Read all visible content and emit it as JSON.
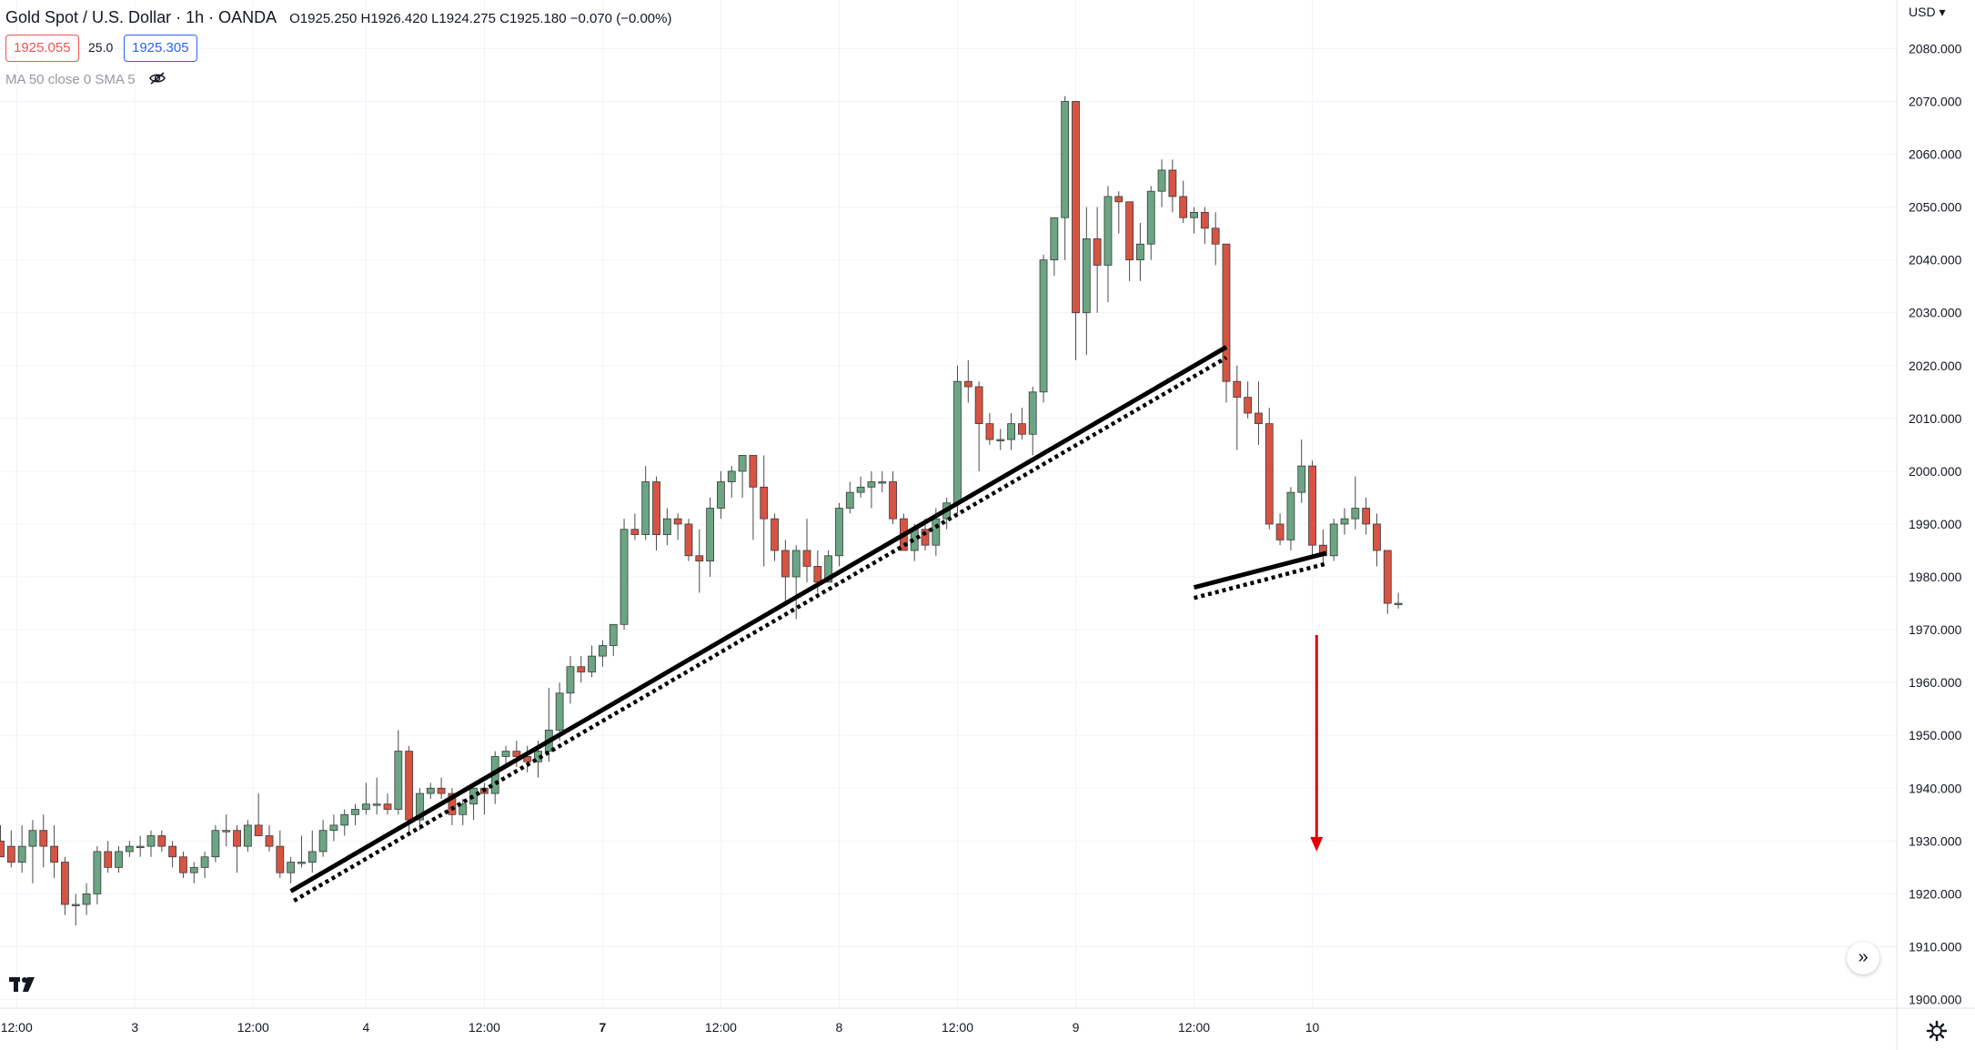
{
  "header": {
    "title": "Gold Spot / U.S. Dollar · 1h · OANDA",
    "ohlc": "O1925.250 H1926.420 L1924.275 C1925.180 −0.070 (−0.00%)",
    "sell_price": "1925.055",
    "spread": "25.0",
    "buy_price": "1925.305",
    "indicator_legend": "MA 50 close 0 SMA 5"
  },
  "currency": "USD",
  "colors": {
    "up": "#6ba583",
    "down": "#d75442",
    "grid": "#f0f3fa",
    "trendline": "#000000",
    "target_arrow": "#e00000"
  },
  "icons": [
    "eye-hidden-icon",
    "tradingview-logo-icon",
    "scroll-right-icon",
    "settings-gear-icon"
  ],
  "chart_data": {
    "type": "candlestick",
    "title": "Gold Spot / U.S. Dollar · 1h · OANDA",
    "ylim": [
      1900,
      2080
    ],
    "y_ticks": [
      "2080.000",
      "2070.000",
      "2060.000",
      "2050.000",
      "2040.000",
      "2030.000",
      "2020.000",
      "2010.000",
      "2000.000",
      "1990.000",
      "1980.000",
      "1970.000",
      "1960.000",
      "1950.000",
      "1940.000",
      "1930.000",
      "1920.000",
      "1910.000",
      "1900.000"
    ],
    "x_ticks": [
      {
        "i": 1.5,
        "label": "12:00",
        "bold": false
      },
      {
        "i": 12.5,
        "label": "3",
        "bold": false
      },
      {
        "i": 23.5,
        "label": "12:00",
        "bold": false
      },
      {
        "i": 34,
        "label": "4",
        "bold": false
      },
      {
        "i": 45,
        "label": "12:00",
        "bold": false
      },
      {
        "i": 56,
        "label": "7",
        "bold": true
      },
      {
        "i": 67,
        "label": "12:00",
        "bold": false
      },
      {
        "i": 78,
        "label": "8",
        "bold": false
      },
      {
        "i": 89,
        "label": "12:00",
        "bold": false
      },
      {
        "i": 100,
        "label": "9",
        "bold": false
      },
      {
        "i": 111,
        "label": "12:00",
        "bold": false
      },
      {
        "i": 122,
        "label": "10",
        "bold": false
      }
    ],
    "candles": [
      [
        1930,
        1933,
        1927,
        1927
      ],
      [
        1929,
        1932,
        1925,
        1926
      ],
      [
        1926,
        1933,
        1924,
        1929
      ],
      [
        1929,
        1934,
        1922,
        1932
      ],
      [
        1932,
        1935,
        1925,
        1929
      ],
      [
        1929,
        1933,
        1923,
        1926
      ],
      [
        1926,
        1927,
        1916,
        1918
      ],
      [
        1918,
        1920,
        1914,
        1918
      ],
      [
        1918,
        1922,
        1916,
        1920
      ],
      [
        1920,
        1929,
        1918,
        1928
      ],
      [
        1928,
        1930,
        1924,
        1925
      ],
      [
        1925,
        1929,
        1924,
        1928
      ],
      [
        1928,
        1930,
        1927,
        1929
      ],
      [
        1929,
        1931,
        1927,
        1929
      ],
      [
        1929,
        1932,
        1927,
        1931
      ],
      [
        1931,
        1932,
        1928,
        1929
      ],
      [
        1929,
        1930,
        1925,
        1927
      ],
      [
        1927,
        1928,
        1923,
        1924
      ],
      [
        1924,
        1926,
        1922,
        1925
      ],
      [
        1925,
        1928,
        1923,
        1927
      ],
      [
        1927,
        1933,
        1926,
        1932
      ],
      [
        1932,
        1935,
        1929,
        1932
      ],
      [
        1932,
        1933,
        1924,
        1929
      ],
      [
        1929,
        1934,
        1928,
        1933
      ],
      [
        1933,
        1939,
        1932,
        1931
      ],
      [
        1931,
        1933,
        1928,
        1929
      ],
      [
        1929,
        1932,
        1923,
        1924
      ],
      [
        1924,
        1927,
        1922,
        1926
      ],
      [
        1926,
        1931,
        1925,
        1926
      ],
      [
        1926,
        1932,
        1924,
        1928
      ],
      [
        1928,
        1934,
        1927,
        1932
      ],
      [
        1932,
        1935,
        1930,
        1933
      ],
      [
        1933,
        1936,
        1931,
        1935
      ],
      [
        1935,
        1937,
        1933,
        1936
      ],
      [
        1936,
        1941,
        1935,
        1937
      ],
      [
        1937,
        1942,
        1935,
        1937
      ],
      [
        1937,
        1939,
        1935,
        1936
      ],
      [
        1936,
        1951,
        1935,
        1947
      ],
      [
        1947,
        1948,
        1931,
        1934
      ],
      [
        1934,
        1940,
        1932,
        1939
      ],
      [
        1939,
        1941,
        1938,
        1940
      ],
      [
        1940,
        1942,
        1938,
        1939
      ],
      [
        1939,
        1940,
        1933,
        1935
      ],
      [
        1935,
        1938,
        1933,
        1937
      ],
      [
        1937,
        1940,
        1934,
        1940
      ],
      [
        1940,
        1941,
        1935,
        1939
      ],
      [
        1939,
        1947,
        1937,
        1946
      ],
      [
        1946,
        1948,
        1944,
        1947
      ],
      [
        1947,
        1949,
        1944,
        1946
      ],
      [
        1946,
        1948,
        1943,
        1945
      ],
      [
        1945,
        1949,
        1942,
        1947
      ],
      [
        1947,
        1959,
        1945,
        1951
      ],
      [
        1951,
        1960,
        1949,
        1958
      ],
      [
        1958,
        1965,
        1956,
        1963
      ],
      [
        1963,
        1965,
        1960,
        1962
      ],
      [
        1962,
        1967,
        1961,
        1965
      ],
      [
        1965,
        1968,
        1963,
        1967
      ],
      [
        1967,
        1970,
        1965,
        1971
      ],
      [
        1971,
        1991,
        1970,
        1989
      ],
      [
        1989,
        1992,
        1987,
        1988
      ],
      [
        1988,
        2001,
        1987,
        1998
      ],
      [
        1998,
        1999,
        1985,
        1988
      ],
      [
        1988,
        1993,
        1986,
        1991
      ],
      [
        1991,
        1992,
        1987,
        1990
      ],
      [
        1990,
        1991,
        1983,
        1984
      ],
      [
        1984,
        1989,
        1977,
        1983
      ],
      [
        1983,
        1995,
        1980,
        1993
      ],
      [
        1993,
        2000,
        1991,
        1998
      ],
      [
        1998,
        2001,
        1995,
        2000
      ],
      [
        2000,
        2003,
        1995,
        2003
      ],
      [
        2003,
        2003,
        1987,
        1997
      ],
      [
        1997,
        2003,
        1982,
        1991
      ],
      [
        1991,
        1992,
        1983,
        1985
      ],
      [
        1985,
        1987,
        1975,
        1980
      ],
      [
        1980,
        1986,
        1972,
        1985
      ],
      [
        1985,
        1991,
        1979,
        1982
      ],
      [
        1982,
        1985,
        1977,
        1979
      ],
      [
        1979,
        1985,
        1979,
        1984
      ],
      [
        1984,
        1994,
        1982,
        1993
      ],
      [
        1993,
        1998,
        1992,
        1996
      ],
      [
        1996,
        1999,
        1995,
        1997
      ],
      [
        1997,
        2000,
        1993,
        1998
      ],
      [
        1998,
        2000,
        1996,
        1998
      ],
      [
        1998,
        2000,
        1990,
        1991
      ],
      [
        1991,
        1992,
        1985,
        1985
      ],
      [
        1985,
        1990,
        1983,
        1989
      ],
      [
        1989,
        1991,
        1985,
        1986
      ],
      [
        1986,
        1993,
        1984,
        1991
      ],
      [
        1991,
        1995,
        1989,
        1994
      ],
      [
        1994,
        2020,
        1992,
        2017
      ],
      [
        2017,
        2021,
        2013,
        2016
      ],
      [
        2016,
        2017,
        2000,
        2009
      ],
      [
        2009,
        2011,
        2005,
        2006
      ],
      [
        2006,
        2008,
        2004,
        2006
      ],
      [
        2006,
        2011,
        2004,
        2009
      ],
      [
        2009,
        2012,
        2006,
        2007
      ],
      [
        2007,
        2016,
        2003,
        2015
      ],
      [
        2015,
        2041,
        2013,
        2040
      ],
      [
        2040,
        2048,
        2037,
        2048
      ],
      [
        2048,
        2071,
        2040,
        2070
      ],
      [
        2070,
        2070,
        2021,
        2030
      ],
      [
        2030,
        2050,
        2022,
        2044
      ],
      [
        2044,
        2050,
        2030,
        2039
      ],
      [
        2039,
        2054,
        2032,
        2052
      ],
      [
        2052,
        2053,
        2045,
        2051
      ],
      [
        2051,
        2051,
        2036,
        2040
      ],
      [
        2040,
        2047,
        2036,
        2043
      ],
      [
        2043,
        2054,
        2040,
        2053
      ],
      [
        2053,
        2059,
        2050,
        2057
      ],
      [
        2057,
        2059,
        2049,
        2052
      ],
      [
        2052,
        2055,
        2047,
        2048
      ],
      [
        2048,
        2050,
        2045,
        2049
      ],
      [
        2049,
        2050,
        2043,
        2046
      ],
      [
        2046,
        2049,
        2039,
        2043
      ],
      [
        2043,
        2043,
        2013,
        2017
      ],
      [
        2017,
        2020,
        2004,
        2014
      ],
      [
        2014,
        2017,
        2010,
        2011
      ],
      [
        2011,
        2017,
        2005,
        2009
      ],
      [
        2009,
        2012,
        1989,
        1990
      ],
      [
        1990,
        1992,
        1986,
        1987
      ],
      [
        1987,
        1997,
        1985,
        1996
      ],
      [
        1996,
        2006,
        1994,
        2001
      ],
      [
        2001,
        2002,
        1984,
        1986
      ],
      [
        1986,
        1989,
        1982,
        1984
      ],
      [
        1984,
        1991,
        1983,
        1990
      ],
      [
        1990,
        1993,
        1988,
        1991
      ],
      [
        1991,
        1999,
        1989,
        1993
      ],
      [
        1993,
        1995,
        1988,
        1990
      ],
      [
        1990,
        1992,
        1982,
        1985
      ],
      [
        1985,
        1985,
        1973,
        1975
      ],
      [
        1975,
        1977,
        1974,
        1975
      ]
    ],
    "trendlines": [
      {
        "style": "solid",
        "from": [
          27,
          1920.5
        ],
        "to": [
          114,
          2023.5
        ]
      },
      {
        "style": "dotted",
        "from": [
          27.3,
          1918.7
        ],
        "to": [
          114,
          2021.5
        ]
      },
      {
        "style": "solid",
        "from": [
          111,
          1978
        ],
        "to": [
          123.3,
          1984.5
        ]
      },
      {
        "style": "dotted",
        "from": [
          111,
          1976
        ],
        "to": [
          123.3,
          1982.5
        ]
      }
    ],
    "target_arrow": {
      "x": 122.4,
      "from": 1969,
      "to": 1928
    }
  }
}
